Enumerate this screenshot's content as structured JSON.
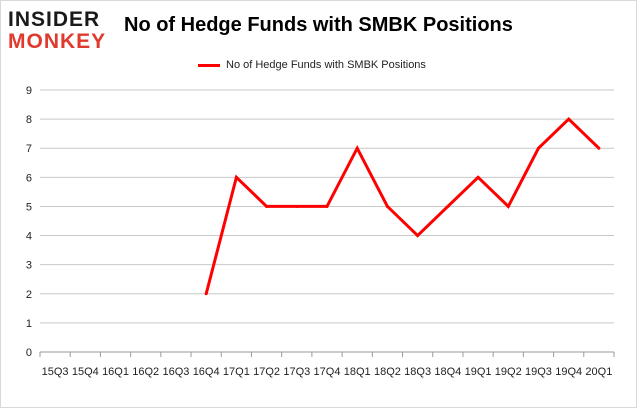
{
  "logo": {
    "line1": "INSIDER",
    "line2": "MONKEY"
  },
  "title": "No of Hedge Funds with SMBK Positions",
  "colors": {
    "series": "#ff0000",
    "grid": "#c9c9c9",
    "axis": "#9a9a9a",
    "logo_red": "#e03a2f"
  },
  "chart_data": {
    "type": "line",
    "title": "No of Hedge Funds with SMBK Positions",
    "categories": [
      "2015Q3",
      "2015Q4",
      "2016Q1",
      "2016Q2",
      "2016Q3",
      "2016Q4",
      "2017Q1",
      "2017Q2",
      "2017Q3",
      "2017Q4",
      "2018Q1",
      "2018Q2",
      "2018Q3",
      "2018Q4",
      "2019Q1",
      "2019Q2",
      "2019Q3",
      "2019Q4",
      "2020Q1"
    ],
    "tick_labels": [
      "15Q3",
      "15Q4",
      "16Q1",
      "16Q2",
      "16Q3",
      "16Q4",
      "17Q1",
      "17Q2",
      "17Q3",
      "17Q4",
      "18Q1",
      "18Q2",
      "18Q3",
      "18Q4",
      "19Q1",
      "19Q2",
      "19Q3",
      "19Q4",
      "20Q1"
    ],
    "series": [
      {
        "name": "No of Hedge Funds with SMBK Positions",
        "values": [
          null,
          null,
          null,
          null,
          null,
          2,
          6,
          5,
          5,
          5,
          7,
          5,
          4,
          5,
          6,
          5,
          7,
          8,
          7
        ]
      }
    ],
    "y_ticks": [
      "0",
      "1",
      "2",
      "3",
      "4",
      "5",
      "6",
      "7",
      "8",
      "9"
    ],
    "ylim": [
      0,
      9
    ],
    "grid": true,
    "legend": "top-center",
    "xlabel": "",
    "ylabel": ""
  }
}
